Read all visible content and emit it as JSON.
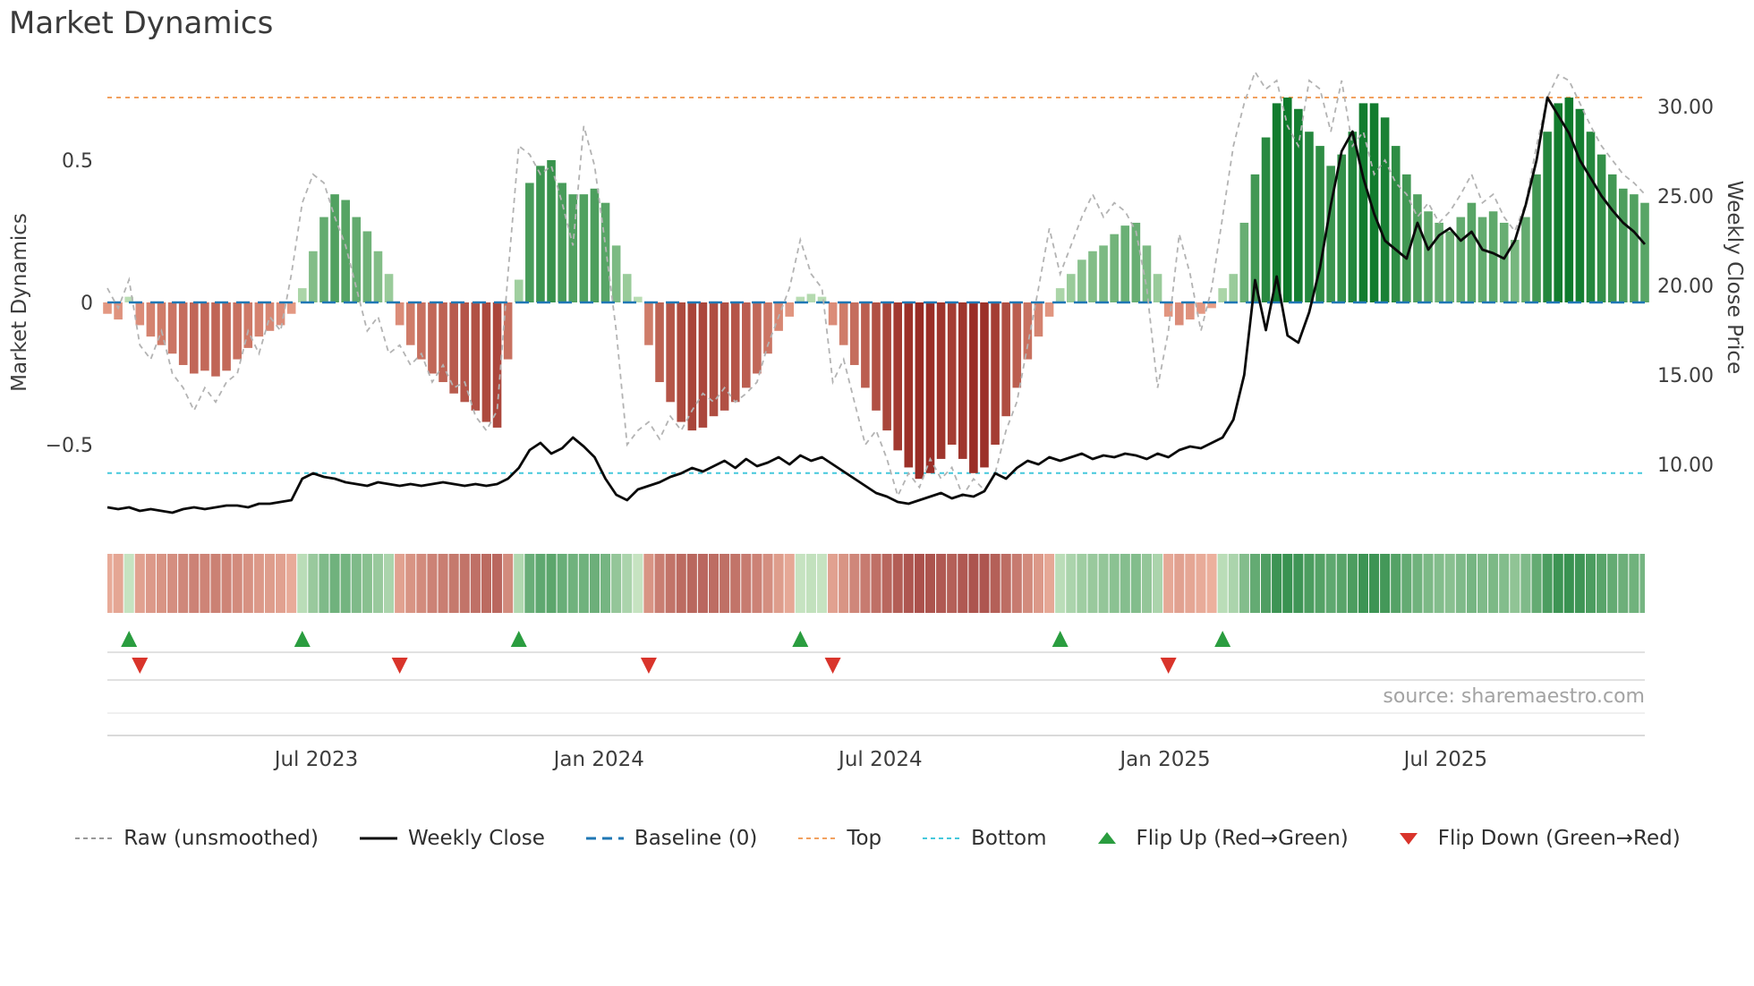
{
  "title": "Market Dynamics",
  "source_note": "source: sharemaestro.com",
  "legend": {
    "items": [
      {
        "label": "Raw (unsmoothed)",
        "marker": "dashed-line",
        "color": "#999999"
      },
      {
        "label": "Weekly Close",
        "marker": "solid-line",
        "color": "#0a0a0a"
      },
      {
        "label": "Baseline (0)",
        "marker": "long-dash-line",
        "color": "#1f77b4"
      },
      {
        "label": "Top",
        "marker": "dashed-line",
        "color": "#f2a15f"
      },
      {
        "label": "Bottom",
        "marker": "dashed-line",
        "color": "#45c8dc"
      },
      {
        "label": "Flip Up (Red→Green)",
        "marker": "up-triangle",
        "color": "#2a9d3f"
      },
      {
        "label": "Flip Down (Green→Red)",
        "marker": "down-triangle",
        "color": "#d9342b"
      }
    ]
  },
  "chart_data": {
    "type": "combo",
    "title": "Market Dynamics",
    "start_date": "2023-02-17",
    "interval": "weekly",
    "weeks": 143,
    "left_axis": {
      "label": "Market Dynamics",
      "range": [
        -0.85,
        0.85
      ],
      "tick_values": [
        0.5,
        0,
        -0.5
      ],
      "tick_labels": [
        "0.5",
        "0",
        "−0.5"
      ]
    },
    "right_axis": {
      "label": "Weekly Close Price",
      "range": [
        6.7,
        32.4
      ],
      "tick_values": [
        30,
        25,
        20,
        15,
        10
      ],
      "tick_labels": [
        "30.00",
        "25.00",
        "20.00",
        "15.00",
        "10.00"
      ]
    },
    "x_axis": {
      "tick_labels": [
        "Jul 2023",
        "Jan 2024",
        "Jul 2024",
        "Jan 2025",
        "Jul 2025"
      ],
      "tick_weeks": [
        19.3,
        45.4,
        71.4,
        97.7,
        123.6
      ]
    },
    "reference_lines": [
      {
        "name": "Baseline (0)",
        "axis": "left",
        "value": 0,
        "color": "#1f77b4",
        "dash": "15 9"
      },
      {
        "name": "Top",
        "axis": "left",
        "value": 0.72,
        "color": "#f2a15f",
        "dash": "5 5"
      },
      {
        "name": "Bottom",
        "axis": "left",
        "value": -0.6,
        "color": "#45c8dc",
        "dash": "5 5"
      }
    ],
    "bars": {
      "name": "Market Dynamics (smoothed oscillator)",
      "axis": "left",
      "values": [
        -0.04,
        -0.06,
        0.02,
        -0.08,
        -0.12,
        -0.15,
        -0.18,
        -0.22,
        -0.25,
        -0.24,
        -0.26,
        -0.24,
        -0.2,
        -0.16,
        -0.12,
        -0.1,
        -0.08,
        -0.04,
        0.05,
        0.18,
        0.3,
        0.38,
        0.36,
        0.3,
        0.25,
        0.18,
        0.1,
        -0.08,
        -0.15,
        -0.2,
        -0.25,
        -0.28,
        -0.32,
        -0.35,
        -0.38,
        -0.42,
        -0.44,
        -0.2,
        0.08,
        0.42,
        0.48,
        0.5,
        0.42,
        0.38,
        0.38,
        0.4,
        0.35,
        0.2,
        0.1,
        0.02,
        -0.15,
        -0.28,
        -0.35,
        -0.42,
        -0.45,
        -0.44,
        -0.4,
        -0.38,
        -0.35,
        -0.3,
        -0.25,
        -0.18,
        -0.1,
        -0.05,
        0.02,
        0.03,
        0.02,
        -0.08,
        -0.15,
        -0.22,
        -0.3,
        -0.38,
        -0.45,
        -0.52,
        -0.58,
        -0.62,
        -0.6,
        -0.55,
        -0.5,
        -0.55,
        -0.6,
        -0.58,
        -0.5,
        -0.4,
        -0.3,
        -0.2,
        -0.12,
        -0.05,
        0.05,
        0.1,
        0.15,
        0.18,
        0.2,
        0.24,
        0.27,
        0.28,
        0.2,
        0.1,
        -0.05,
        -0.08,
        -0.06,
        -0.04,
        -0.02,
        0.05,
        0.1,
        0.28,
        0.45,
        0.58,
        0.7,
        0.72,
        0.68,
        0.6,
        0.55,
        0.48,
        0.52,
        0.6,
        0.7,
        0.7,
        0.65,
        0.55,
        0.45,
        0.38,
        0.32,
        0.28,
        0.25,
        0.3,
        0.35,
        0.3,
        0.32,
        0.28,
        0.22,
        0.3,
        0.45,
        0.6,
        0.7,
        0.72,
        0.68,
        0.6,
        0.52,
        0.45,
        0.4,
        0.38,
        0.35
      ]
    },
    "raw_line": {
      "name": "Raw (unsmoothed)",
      "axis": "left",
      "color": "#b3b3b3",
      "dash": "6 5",
      "values": [
        0.05,
        -0.02,
        0.08,
        -0.15,
        -0.2,
        -0.1,
        -0.25,
        -0.3,
        -0.38,
        -0.3,
        -0.35,
        -0.28,
        -0.25,
        -0.1,
        -0.18,
        -0.05,
        -0.1,
        0.1,
        0.35,
        0.45,
        0.42,
        0.3,
        0.2,
        0.05,
        -0.1,
        -0.05,
        -0.18,
        -0.15,
        -0.22,
        -0.18,
        -0.28,
        -0.22,
        -0.3,
        -0.28,
        -0.4,
        -0.45,
        -0.38,
        0.1,
        0.55,
        0.52,
        0.45,
        0.48,
        0.35,
        0.2,
        0.62,
        0.48,
        0.2,
        -0.1,
        -0.5,
        -0.45,
        -0.42,
        -0.48,
        -0.4,
        -0.45,
        -0.38,
        -0.32,
        -0.35,
        -0.3,
        -0.35,
        -0.32,
        -0.28,
        -0.15,
        -0.05,
        0.05,
        0.22,
        0.1,
        0.05,
        -0.28,
        -0.2,
        -0.35,
        -0.5,
        -0.45,
        -0.55,
        -0.68,
        -0.6,
        -0.65,
        -0.55,
        -0.62,
        -0.58,
        -0.68,
        -0.62,
        -0.66,
        -0.6,
        -0.45,
        -0.35,
        -0.15,
        0.05,
        0.26,
        0.1,
        0.2,
        0.3,
        0.38,
        0.3,
        0.35,
        0.32,
        0.25,
        0.05,
        -0.3,
        -0.1,
        0.24,
        0.1,
        -0.1,
        0.05,
        0.3,
        0.55,
        0.7,
        0.81,
        0.75,
        0.78,
        0.62,
        0.55,
        0.78,
        0.75,
        0.6,
        0.78,
        0.55,
        0.6,
        0.45,
        0.5,
        0.42,
        0.38,
        0.3,
        0.35,
        0.28,
        0.32,
        0.38,
        0.45,
        0.35,
        0.38,
        0.3,
        0.25,
        0.35,
        0.55,
        0.72,
        0.8,
        0.78,
        0.7,
        0.62,
        0.55,
        0.5,
        0.45,
        0.42,
        0.38
      ]
    },
    "close_line": {
      "name": "Weekly Close",
      "axis": "right",
      "color": "#0a0a0a",
      "values": [
        7.6,
        7.5,
        7.6,
        7.4,
        7.5,
        7.4,
        7.3,
        7.5,
        7.6,
        7.5,
        7.6,
        7.7,
        7.7,
        7.6,
        7.8,
        7.8,
        7.9,
        8.0,
        9.2,
        9.5,
        9.3,
        9.2,
        9.0,
        8.9,
        8.8,
        9.0,
        8.9,
        8.8,
        8.9,
        8.8,
        8.9,
        9.0,
        8.9,
        8.8,
        8.9,
        8.8,
        8.9,
        9.2,
        9.8,
        10.8,
        11.2,
        10.6,
        10.9,
        11.5,
        11.0,
        10.4,
        9.2,
        8.3,
        8.0,
        8.6,
        8.8,
        9.0,
        9.3,
        9.5,
        9.8,
        9.6,
        9.9,
        10.2,
        9.8,
        10.3,
        9.9,
        10.1,
        10.4,
        10.0,
        10.5,
        10.2,
        10.4,
        10.0,
        9.6,
        9.2,
        8.8,
        8.4,
        8.2,
        7.9,
        7.8,
        8.0,
        8.2,
        8.4,
        8.1,
        8.3,
        8.2,
        8.5,
        9.5,
        9.2,
        9.8,
        10.2,
        10.0,
        10.4,
        10.2,
        10.4,
        10.6,
        10.3,
        10.5,
        10.4,
        10.6,
        10.5,
        10.3,
        10.6,
        10.4,
        10.8,
        11.0,
        10.9,
        11.2,
        11.5,
        12.5,
        15.0,
        20.3,
        17.5,
        20.5,
        17.2,
        16.8,
        18.5,
        21.0,
        24.5,
        27.5,
        28.6,
        26.0,
        24.0,
        22.5,
        22.0,
        21.5,
        23.5,
        22.0,
        22.8,
        23.2,
        22.5,
        23.0,
        22.0,
        21.8,
        21.5,
        22.5,
        24.5,
        27.0,
        30.5,
        29.5,
        28.5,
        27.0,
        26.0,
        25.0,
        24.2,
        23.5,
        23.0,
        22.3
      ]
    },
    "heatmap": {
      "source": "bars",
      "note": "weekly red/green intensity strip colored by oscillator value"
    },
    "flip_up_weeks": [
      2,
      18,
      38,
      64,
      88,
      103
    ],
    "flip_down_weeks": [
      3,
      27,
      50,
      67,
      98
    ],
    "colors": {
      "positive_light": "#c8e6bf",
      "positive_dark": "#0e7a2b",
      "negative_light": "#f0ab92",
      "negative_dark": "#8e1d18",
      "flip_up": "#2a9d3f",
      "flip_down": "#d9342b"
    }
  }
}
